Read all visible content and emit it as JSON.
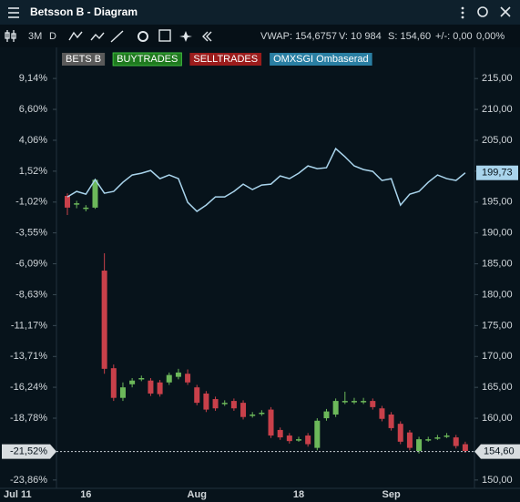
{
  "window": {
    "title": "Betsson B - Diagram"
  },
  "toolbar": {
    "period": "3M",
    "interval": "D",
    "vwap": "VWAP: 154,6757",
    "volume": "V: 10 984",
    "last": "S: 154,60",
    "change": "+/-: 0,00",
    "change_pct": "0,00%"
  },
  "chart_data": {
    "type": "candlestick",
    "legend": [
      {
        "name": "BETS B",
        "color": "#5a5a5a"
      },
      {
        "name": "BUYTRADES",
        "color": "#1f7a1f"
      },
      {
        "name": "SELLTRADES",
        "color": "#9b1c1c"
      },
      {
        "name": "OMXSGI Ombaserad",
        "color": "#2a7fa3"
      }
    ],
    "categories": [
      "Jul 11",
      null,
      "16",
      null,
      null,
      null,
      null,
      null,
      null,
      null,
      null,
      null,
      null,
      null,
      "Aug",
      null,
      null,
      null,
      null,
      null,
      null,
      null,
      null,
      null,
      null,
      "18",
      null,
      null,
      null,
      null,
      null,
      null,
      null,
      null,
      null,
      "Sep",
      null,
      null,
      null,
      null,
      null,
      null,
      null,
      null
    ],
    "ohlc": {
      "open": [
        196.0,
        194.6,
        194.0,
        194.1,
        183.9,
        168.1,
        163.3,
        165.5,
        166.4,
        166.1,
        165.8,
        165.8,
        166.7,
        167.2,
        165.0,
        164.0,
        163.1,
        162.4,
        162.8,
        162.5,
        160.5,
        160.8,
        161.4,
        158.1,
        157.2,
        156.5,
        157.2,
        155.2,
        160.0,
        160.6,
        162.7,
        162.7,
        162.7,
        162.8,
        161.6,
        160.6,
        159.1,
        157.7,
        154.7,
        156.5,
        156.8,
        157.1,
        156.9,
        155.8
      ],
      "high": [
        196.4,
        195.2,
        194.5,
        198.8,
        186.7,
        168.7,
        165.8,
        166.5,
        166.9,
        166.5,
        166.2,
        167.4,
        168.0,
        167.9,
        165.4,
        164.4,
        163.5,
        162.9,
        163.2,
        162.9,
        161.0,
        161.3,
        161.8,
        158.5,
        157.6,
        157.0,
        157.6,
        160.0,
        161.5,
        163.2,
        164.3,
        163.3,
        163.3,
        163.2,
        162.0,
        161.0,
        159.5,
        158.1,
        157.0,
        157.0,
        157.3,
        157.6,
        157.3,
        156.2
      ],
      "low": [
        192.9,
        194.0,
        193.5,
        193.9,
        167.2,
        162.8,
        162.8,
        165.0,
        166.0,
        163.6,
        163.5,
        165.4,
        166.3,
        165.4,
        162.1,
        161.0,
        161.2,
        162.0,
        161.2,
        159.8,
        160.1,
        160.4,
        156.8,
        156.5,
        155.9,
        156.2,
        155.4,
        154.8,
        159.6,
        160.2,
        162.3,
        162.3,
        162.3,
        161.4,
        159.5,
        158.0,
        155.8,
        154.8,
        154.3,
        156.2,
        156.5,
        156.8,
        155.1,
        154.4
      ],
      "close": [
        194.1,
        194.8,
        194.1,
        198.6,
        168.0,
        163.3,
        165.0,
        166.1,
        166.5,
        164.0,
        163.9,
        167.0,
        167.4,
        165.8,
        162.5,
        161.4,
        161.6,
        162.5,
        161.6,
        160.2,
        160.6,
        160.9,
        157.2,
        156.9,
        156.3,
        156.6,
        155.8,
        159.6,
        161.1,
        162.8,
        162.8,
        162.8,
        162.8,
        161.8,
        159.9,
        158.4,
        156.2,
        155.2,
        156.6,
        156.6,
        156.9,
        157.2,
        155.5,
        154.7
      ]
    },
    "up_color": "#6cb85a",
    "down_color": "#c8404a",
    "flat_color": "#9aa3a8",
    "series": [
      {
        "name": "OMXSGI Ombaserad",
        "color": "#a9d4ec",
        "values": [
          195.84,
          196.72,
          196.28,
          198.64,
          196.43,
          196.72,
          198.2,
          199.38,
          199.67,
          200.11,
          198.79,
          199.38,
          198.79,
          194.96,
          193.49,
          194.51,
          195.84,
          195.84,
          196.72,
          197.9,
          197.02,
          197.76,
          197.9,
          199.23,
          198.79,
          199.67,
          200.85,
          200.41,
          200.56,
          203.65,
          202.33,
          200.85,
          200.26,
          199.97,
          198.49,
          198.79,
          194.51,
          196.28,
          196.72,
          198.2,
          199.38,
          198.79,
          198.49,
          199.73
        ],
        "last_label": "199,73"
      }
    ],
    "last_price": {
      "value": 154.6,
      "label": "154,60"
    },
    "last_change": {
      "value": -21.52,
      "label": "-21,52%"
    },
    "ylim": [
      148.8,
      219.6
    ],
    "yticks": [
      {
        "value": 215,
        "label": "215,00"
      },
      {
        "value": 210,
        "label": "210,00"
      },
      {
        "value": 205,
        "label": "205,00"
      },
      {
        "value": 200,
        "label": "200,00"
      },
      {
        "value": 195,
        "label": "195,00"
      },
      {
        "value": 190,
        "label": "190,00"
      },
      {
        "value": 185,
        "label": "185,00"
      },
      {
        "value": 180,
        "label": "180,00"
      },
      {
        "value": 175,
        "label": "175,00"
      },
      {
        "value": 170,
        "label": "170,00"
      },
      {
        "value": 165,
        "label": "165,00"
      },
      {
        "value": 160,
        "label": "160,00"
      },
      {
        "value": 150,
        "label": "150,00"
      }
    ],
    "y2lim": [
      -24.47,
      11.47
    ],
    "y2ticks": [
      {
        "value": 9.14,
        "label": "9,14%"
      },
      {
        "value": 6.6,
        "label": "6,60%"
      },
      {
        "value": 4.06,
        "label": "4,06%"
      },
      {
        "value": 1.52,
        "label": "1,52%"
      },
      {
        "value": -1.02,
        "label": "-1,02%"
      },
      {
        "value": -3.55,
        "label": "-3,55%"
      },
      {
        "value": -6.09,
        "label": "-6,09%"
      },
      {
        "value": -8.63,
        "label": "-8,63%"
      },
      {
        "value": -11.17,
        "label": "-11,17%"
      },
      {
        "value": -13.71,
        "label": "-13,71%"
      },
      {
        "value": -16.24,
        "label": "-16,24%"
      },
      {
        "value": -18.78,
        "label": "-18,78%"
      },
      {
        "value": -23.86,
        "label": "-23,86%"
      }
    ]
  }
}
